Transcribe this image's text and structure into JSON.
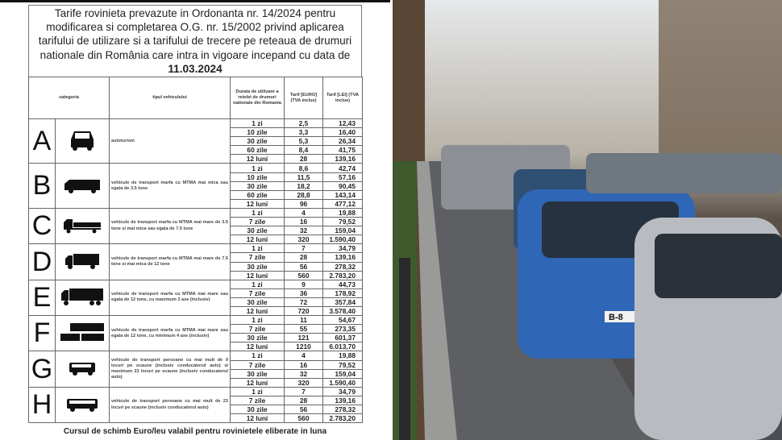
{
  "document": {
    "title_text": "Tarife rovinieta prevazute in Ordonanta nr. 14/2024 pentru modificarea si completarea O.G. nr. 15/2002 privind aplicarea tarifului de utilizare si a tarifului de trecere pe reteaua de drumuri nationale din România care intra in vigoare incepand cu data de",
    "title_date": "11.03.2024",
    "headers": {
      "category": "categoria",
      "vehicle_type": "tipul vehiculului",
      "duration": "Durata de utilizare a retelei de drumuri nationale din Romania",
      "euro": "Tarif [EURO] (TVA inclus)",
      "lei": "Tarif [LEI] (TVA inclus)"
    },
    "categories": [
      {
        "letter": "A",
        "icon": "car-icon",
        "type": "autoturism",
        "rows": [
          [
            "1 zi",
            "2,5",
            "12,43"
          ],
          [
            "10 zile",
            "3,3",
            "16,40"
          ],
          [
            "30 zile",
            "5,3",
            "26,34"
          ],
          [
            "60 zile",
            "8,4",
            "41,75"
          ],
          [
            "12 luni",
            "28",
            "139,16"
          ]
        ]
      },
      {
        "letter": "B",
        "icon": "van-icon",
        "type": "vehicule de transport marfa cu MTMA mai mica sau egala de 3.5 tone",
        "rows": [
          [
            "1 zi",
            "8,6",
            "42,74"
          ],
          [
            "10 zile",
            "11,5",
            "57,16"
          ],
          [
            "30 zile",
            "18,2",
            "90,45"
          ],
          [
            "60 zile",
            "28,8",
            "143,14"
          ],
          [
            "12 luni",
            "96",
            "477,12"
          ]
        ]
      },
      {
        "letter": "C",
        "icon": "light-truck-icon",
        "type": "vehicule de transport marfa cu MTMA mai mare de 3.5 tone si mai mica sau egala de 7.5 tone",
        "rows": [
          [
            "1 zi",
            "4",
            "19,88"
          ],
          [
            "7 zile",
            "16",
            "79,52"
          ],
          [
            "30 zile",
            "32",
            "159,04"
          ],
          [
            "12 luni",
            "320",
            "1.590,40"
          ]
        ]
      },
      {
        "letter": "D",
        "icon": "truck-icon",
        "type": "vehicule de transport marfa cu MTMA mai mare de 7.5 tone si mai mica de 12 tone",
        "rows": [
          [
            "1 zi",
            "7",
            "34,79"
          ],
          [
            "7 zile",
            "28",
            "139,16"
          ],
          [
            "30 zile",
            "56",
            "278,32"
          ],
          [
            "12 luni",
            "560",
            "2.783,20"
          ]
        ]
      },
      {
        "letter": "E",
        "icon": "heavy-truck-icon",
        "type": "vehicule de transport marfa cu MTMA mai mare sau egala de 12 tone, cu maximum 3 axe (inclusiv)",
        "rows": [
          [
            "1 zi",
            "9",
            "44,73"
          ],
          [
            "7 zile",
            "36",
            "178,92"
          ],
          [
            "30 zile",
            "72",
            "357,84"
          ],
          [
            "12 luni",
            "720",
            "3.578,40"
          ]
        ]
      },
      {
        "letter": "F",
        "icon": "truck-trailer-icon",
        "type": "vehicule de transport marfa cu MTMA mai mare sau egala de 12 tone, cu minimum 4 axe (inclusiv)",
        "rows": [
          [
            "1 zi",
            "11",
            "54,67"
          ],
          [
            "7 zile",
            "55",
            "273,35"
          ],
          [
            "30 zile",
            "121",
            "601,37"
          ],
          [
            "12 luni",
            "1210",
            "6.013,70"
          ]
        ]
      },
      {
        "letter": "G",
        "icon": "minibus-icon",
        "type": "vehicule de transport persoane cu mai mult de 9 locuri pe scaune (inclusiv conducatorul auto) si maximum 23 locuri pe scaune (inclusiv conducatorul auto)",
        "rows": [
          [
            "1 zi",
            "4",
            "19,88"
          ],
          [
            "7 zile",
            "16",
            "79,52"
          ],
          [
            "30 zile",
            "32",
            "159,04"
          ],
          [
            "12 luni",
            "320",
            "1.590,40"
          ]
        ]
      },
      {
        "letter": "H",
        "icon": "bus-icon",
        "type": "vehicule de transport persoane cu mai mult de 23 locuri pe scaune (inclusiv conducatorul auto)",
        "rows": [
          [
            "1 zi",
            "7",
            "34,79"
          ],
          [
            "7 zile",
            "28",
            "139,16"
          ],
          [
            "30 zile",
            "56",
            "278,32"
          ],
          [
            "12 luni",
            "560",
            "2.783,20"
          ]
        ]
      }
    ],
    "footer": "Cursul de schimb Euro/leu valabil pentru rovinietele eliberate in luna"
  },
  "photo": {
    "subject": "traffic-jam-photo",
    "plate_text": "B-8"
  }
}
